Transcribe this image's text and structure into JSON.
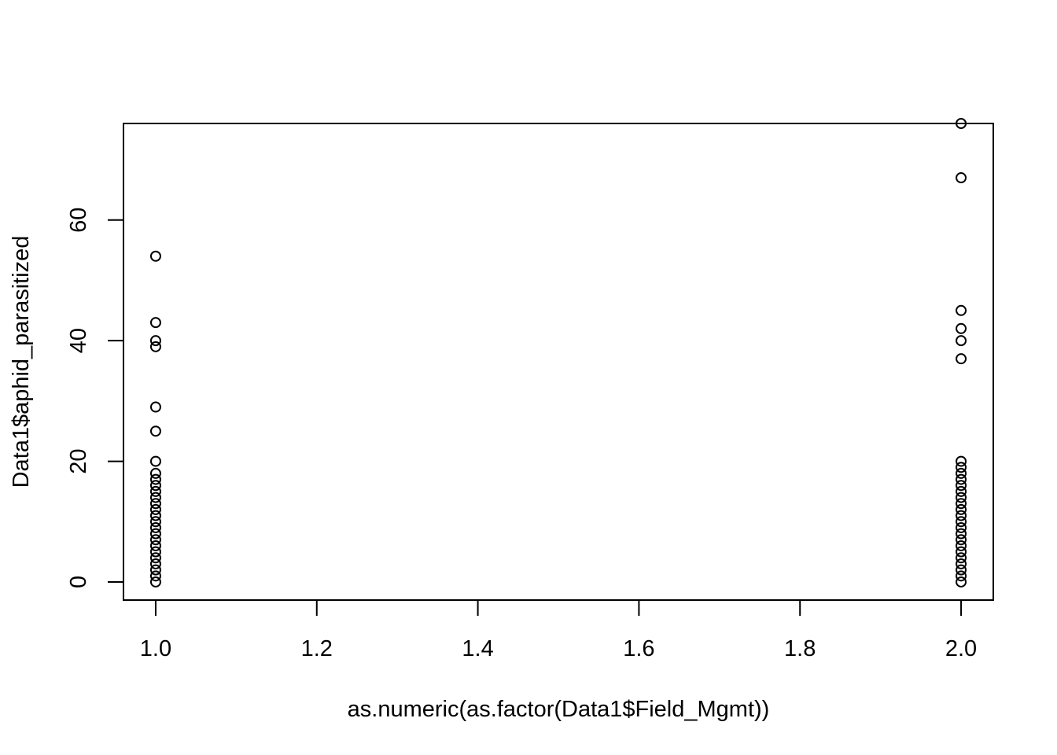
{
  "chart_data": {
    "type": "scatter",
    "title": "",
    "xlabel": "as.numeric(as.factor(Data1$Field_Mgmt))",
    "ylabel": "Data1$aphid_parasitized",
    "xlim": [
      0.96,
      2.04
    ],
    "ylim": [
      -3,
      76
    ],
    "xticks": [
      1.0,
      1.2,
      1.4,
      1.6,
      1.8,
      2.0
    ],
    "xtick_labels": [
      "1.0",
      "1.2",
      "1.4",
      "1.6",
      "1.8",
      "2.0"
    ],
    "yticks": [
      0,
      20,
      40,
      60
    ],
    "ytick_labels": [
      "0",
      "20",
      "40",
      "60"
    ],
    "grid": false,
    "marker": "open-circle",
    "series": [
      {
        "x": [
          1,
          1,
          1,
          1,
          1,
          1,
          1,
          1,
          1,
          1,
          1,
          1,
          1,
          1,
          1,
          1,
          1,
          1,
          1,
          1,
          1,
          1,
          1,
          1,
          1,
          1
        ],
        "y": [
          0,
          1,
          2,
          3,
          4,
          5,
          6,
          7,
          9,
          10,
          11,
          12,
          13,
          14,
          16,
          17,
          18,
          20,
          25,
          29,
          39,
          40,
          43,
          54,
          8,
          15
        ]
      },
      {
        "x": [
          2,
          2,
          2,
          2,
          2,
          2,
          2,
          2,
          2,
          2,
          2,
          2,
          2,
          2,
          2,
          2,
          2,
          2,
          2,
          2,
          2,
          2,
          2,
          2,
          2,
          2,
          2
        ],
        "y": [
          0,
          1,
          2,
          3,
          4,
          5,
          6,
          7,
          8,
          9,
          10,
          11,
          12,
          13,
          14,
          15,
          18,
          20,
          37,
          40,
          42,
          45,
          67,
          76,
          16,
          17,
          19
        ]
      }
    ]
  }
}
